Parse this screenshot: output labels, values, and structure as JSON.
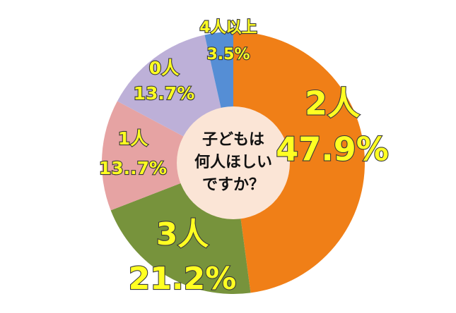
{
  "chart_data": {
    "type": "donut",
    "center_text": [
      "子どもは",
      "何人ほしい",
      "ですか？"
    ],
    "categories": [
      "2人",
      "3人",
      "1人",
      "0人",
      "4人以上"
    ],
    "values": [
      47.9,
      21.2,
      13.7,
      13.7,
      3.5
    ],
    "value_labels": [
      "47.9%",
      "21.2%",
      "13..7%",
      "13.7%",
      "3.5%"
    ],
    "colors": [
      "#f07f17",
      "#77933c",
      "#e6a3a3",
      "#bdb0d8",
      "#558ed5"
    ]
  }
}
